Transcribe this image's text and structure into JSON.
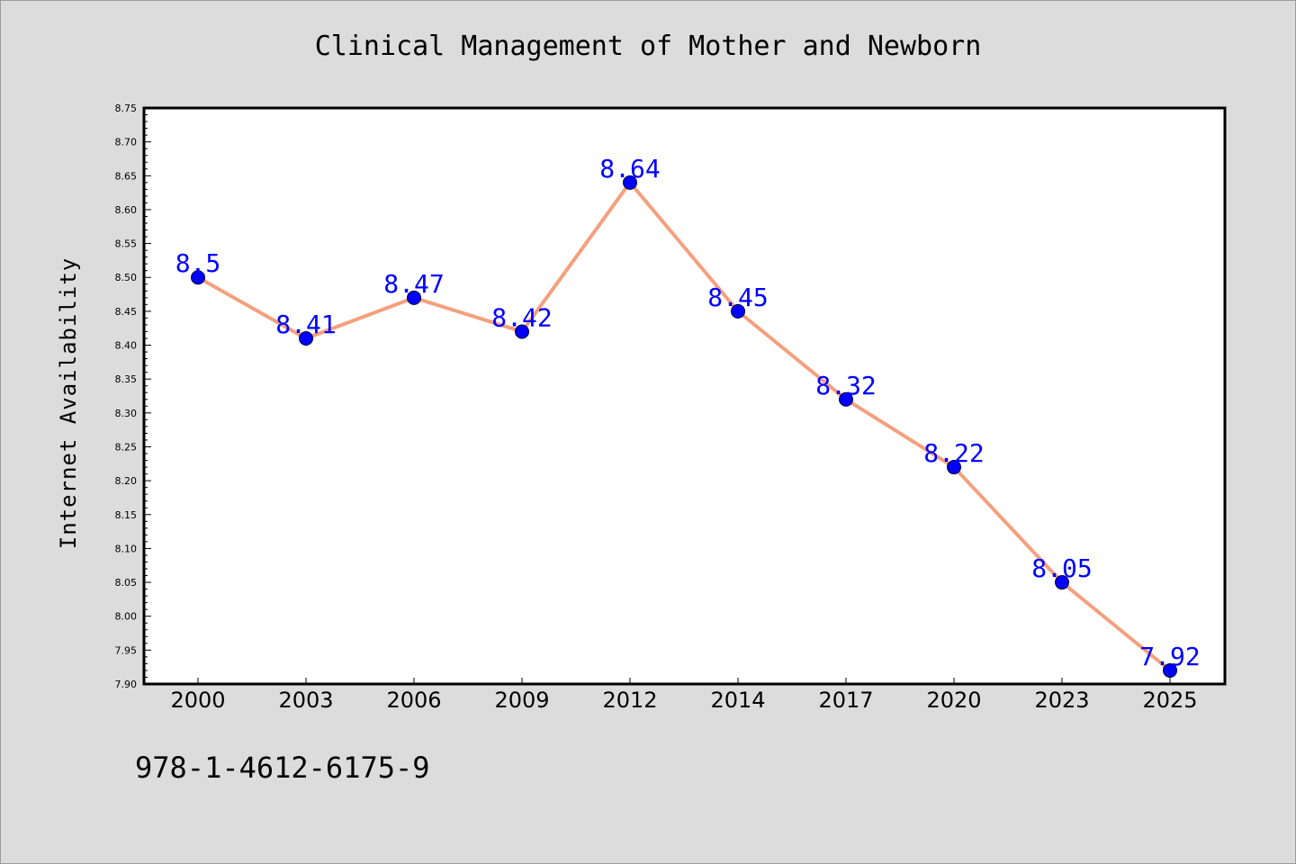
{
  "chart_data": {
    "type": "line",
    "title": "Clinical Management of Mother and Newborn",
    "xlabel": "",
    "ylabel": "Internet Availability",
    "categories": [
      "2000",
      "2003",
      "2006",
      "2009",
      "2012",
      "2014",
      "2017",
      "2020",
      "2023",
      "2025"
    ],
    "values": [
      8.5,
      8.41,
      8.47,
      8.42,
      8.64,
      8.45,
      8.32,
      8.22,
      8.05,
      7.92
    ],
    "data_labels": [
      "8.5",
      "8.41",
      "8.47",
      "8.42",
      "8.64",
      "8.45",
      "8.32",
      "8.22",
      "8.05",
      "7.92"
    ],
    "ylim": [
      7.9,
      8.75
    ],
    "yticks": [
      "7.90",
      "7.95",
      "8.00",
      "8.05",
      "8.10",
      "8.15",
      "8.20",
      "8.25",
      "8.30",
      "8.35",
      "8.40",
      "8.45",
      "8.50",
      "8.55",
      "8.60",
      "8.65",
      "8.70",
      "8.75"
    ],
    "grid": false,
    "colors": {
      "line": "#f4a07e",
      "marker": "#0000ff",
      "label": "#0000ff"
    }
  },
  "footer": {
    "isbn": "978-1-4612-6175-9"
  }
}
